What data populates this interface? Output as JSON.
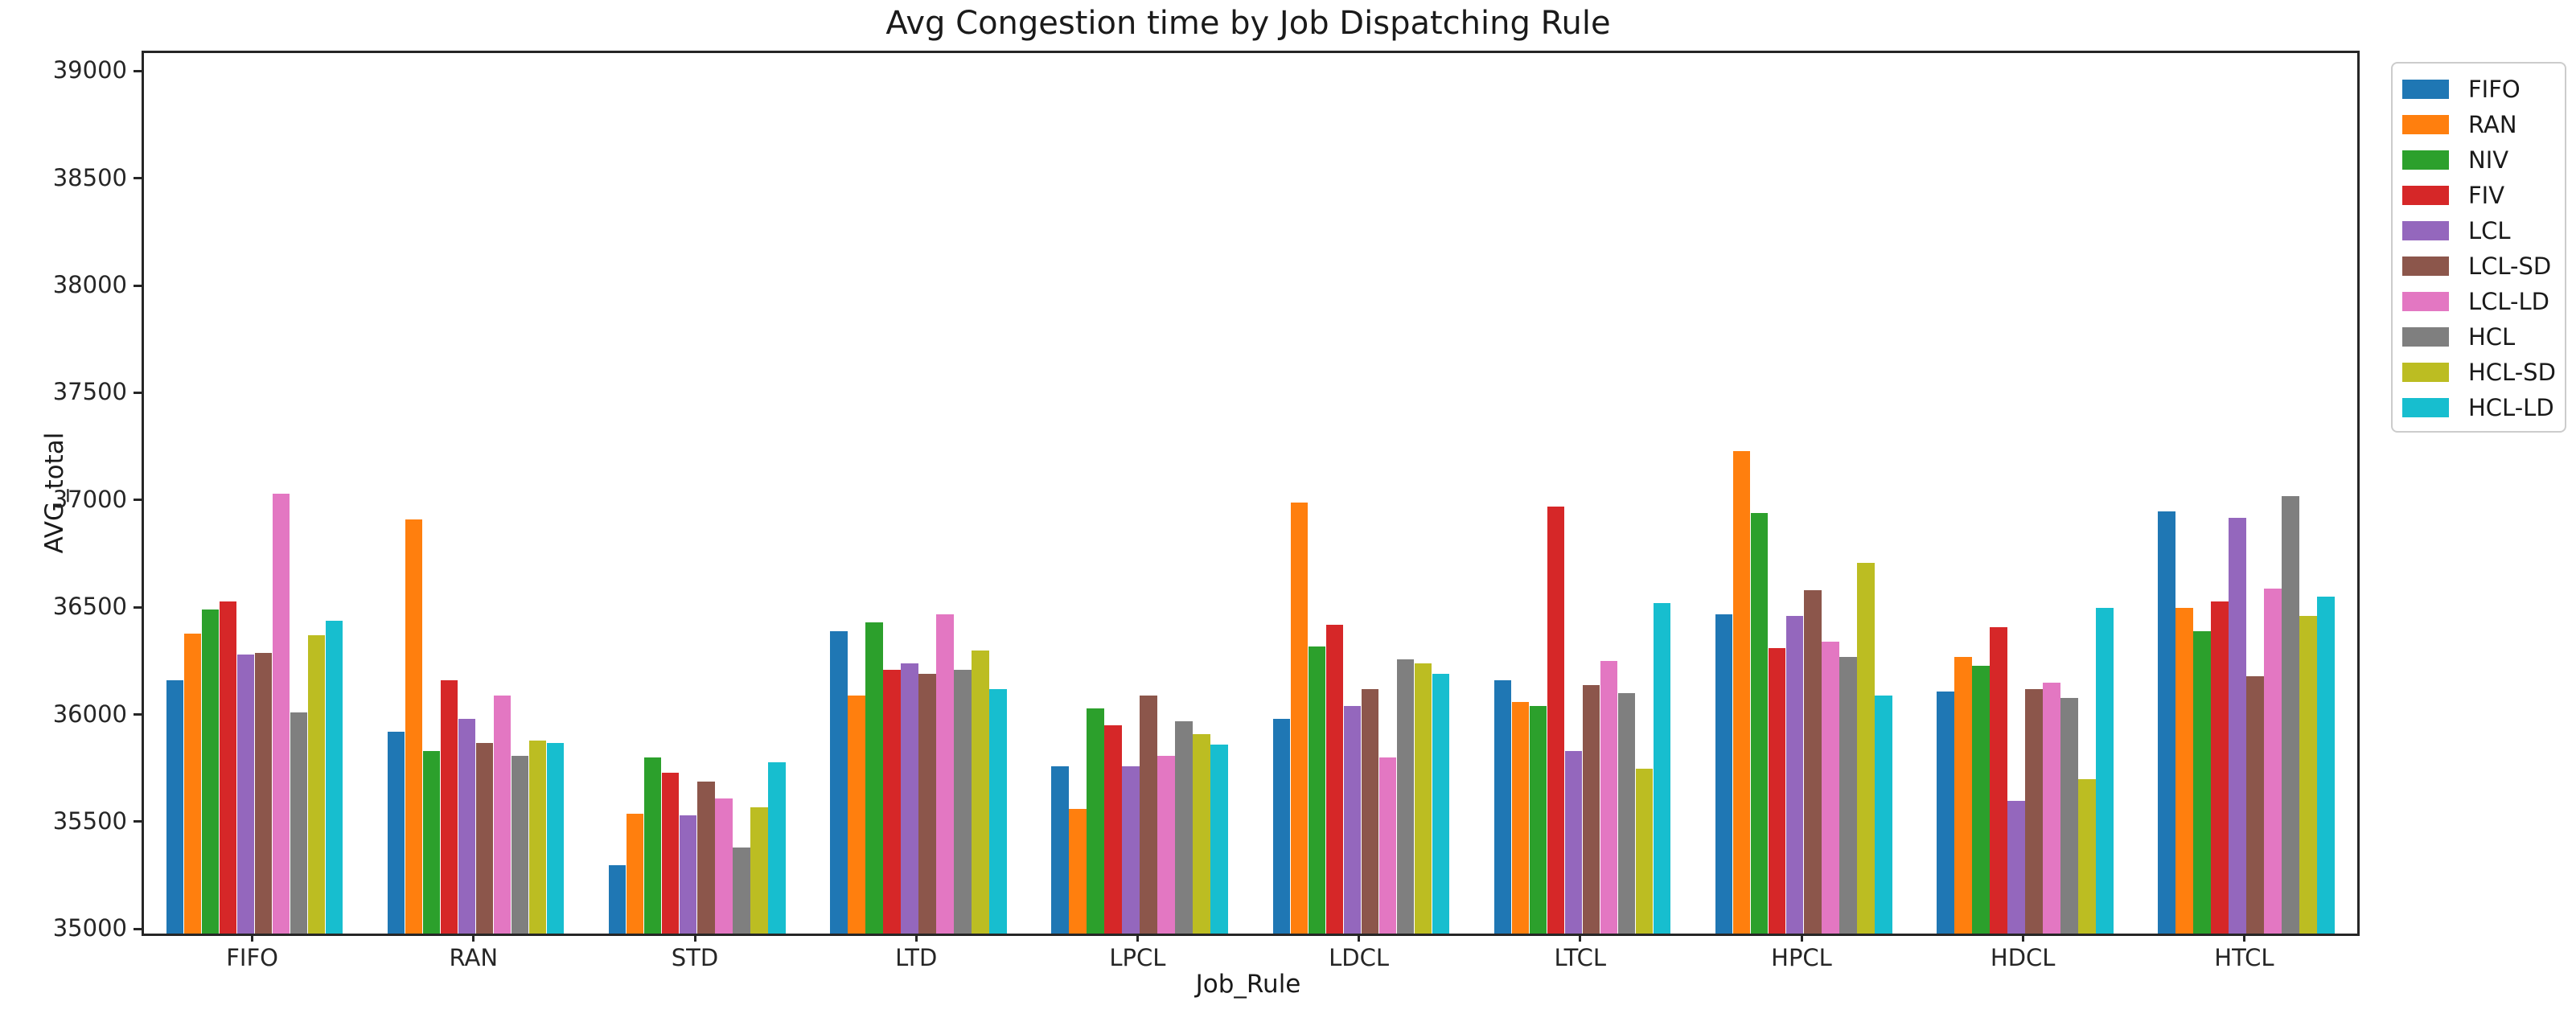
{
  "figure": {
    "background": "#ffffff",
    "text_color": "#1a1a1a",
    "spine_color": "#262626"
  },
  "chart_data": {
    "type": "bar",
    "title": "Avg Congestion time by Job Dispatching Rule",
    "xlabel": "Job_Rule",
    "ylabel": "AVG_total",
    "categories": [
      "FIFO",
      "RAN",
      "STD",
      "LTD",
      "LPCL",
      "LDCL",
      "LTCL",
      "HPCL",
      "HDCL",
      "HTCL"
    ],
    "series": [
      {
        "name": "FIFO",
        "color": "#1f77b4",
        "values": [
          36170,
          35930,
          35310,
          36400,
          35770,
          35990,
          36170,
          36480,
          36120,
          36960
        ]
      },
      {
        "name": "RAN",
        "color": "#ff7f0e",
        "values": [
          36390,
          36920,
          35550,
          36100,
          35570,
          37000,
          36070,
          37240,
          36280,
          36510
        ]
      },
      {
        "name": "NIV",
        "color": "#2ca02c",
        "values": [
          36500,
          35840,
          35810,
          36440,
          36040,
          36330,
          36050,
          36950,
          36240,
          36400
        ]
      },
      {
        "name": "FIV",
        "color": "#d62728",
        "values": [
          36540,
          36170,
          35740,
          36220,
          35960,
          36430,
          36980,
          36320,
          36420,
          36540
        ]
      },
      {
        "name": "LCL",
        "color": "#9467bd",
        "values": [
          36290,
          35990,
          35540,
          36250,
          35770,
          36050,
          35840,
          36470,
          35610,
          36930
        ]
      },
      {
        "name": "LCL-SD",
        "color": "#8c564b",
        "values": [
          36300,
          35880,
          35700,
          36200,
          36100,
          36130,
          36150,
          36590,
          36130,
          36190
        ]
      },
      {
        "name": "LCL-LD",
        "color": "#e377c2",
        "values": [
          37040,
          36100,
          35620,
          36480,
          35820,
          35810,
          36260,
          36350,
          36160,
          36600
        ]
      },
      {
        "name": "HCL",
        "color": "#7f7f7f",
        "values": [
          36020,
          35820,
          35390,
          36220,
          35980,
          36270,
          36110,
          36280,
          36090,
          37030
        ]
      },
      {
        "name": "HCL-SD",
        "color": "#bcbd22",
        "values": [
          36380,
          35890,
          35580,
          36310,
          35920,
          36250,
          35760,
          36720,
          35710,
          36470
        ]
      },
      {
        "name": "HCL-LD",
        "color": "#17becf",
        "values": [
          36450,
          35880,
          35790,
          36130,
          35870,
          36200,
          36530,
          36100,
          36510,
          36560
        ]
      }
    ],
    "ylim": [
      34990,
      39095
    ],
    "yticks": [
      35000,
      35500,
      36000,
      36500,
      37000,
      37500,
      38000,
      38500,
      39000
    ],
    "grid": false,
    "legend_position": "upper right outside plot"
  }
}
